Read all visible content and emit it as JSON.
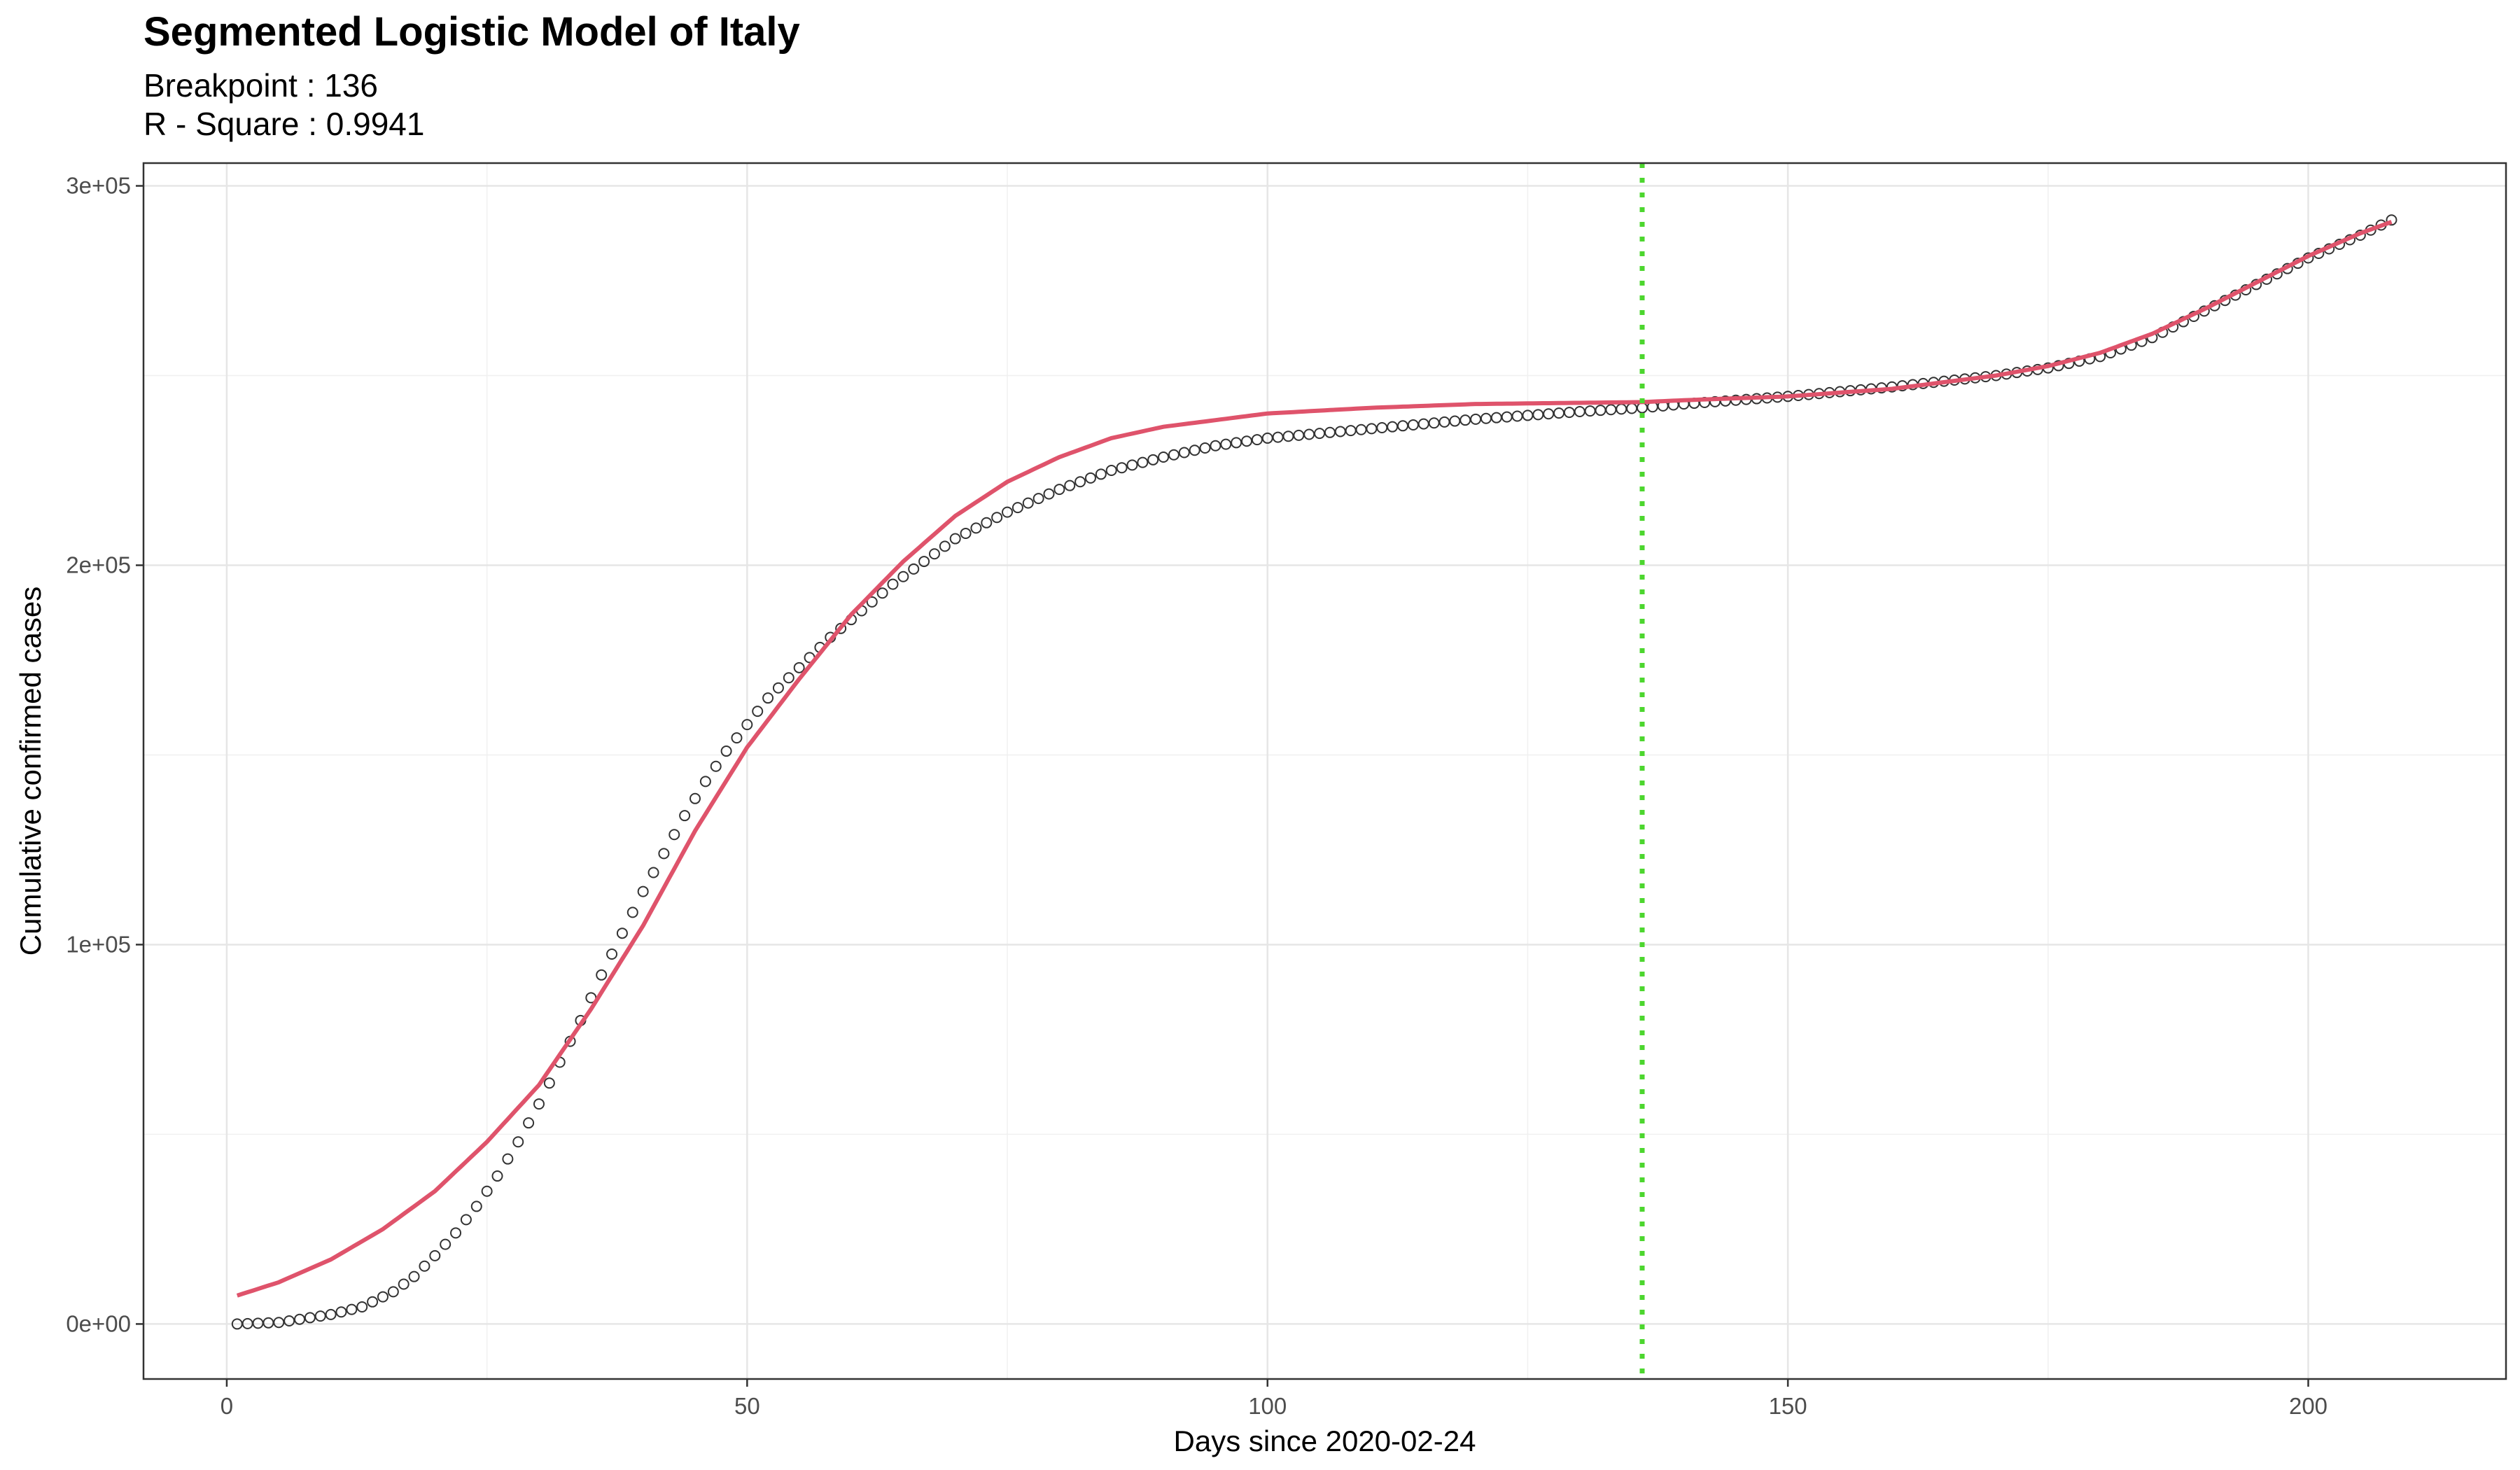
{
  "chart_data": {
    "type": "scatter",
    "title": "Segmented Logistic Model of Italy",
    "subtitle_lines": [
      "Breakpoint : 136",
      "R - Square : 0.9941"
    ],
    "xlabel": "Days since 2020-02-24",
    "ylabel": "Cumulative confirmed cases",
    "xlim": [
      -8,
      219
    ],
    "ylim": [
      -14500,
      306000
    ],
    "x_ticks": [
      0,
      50,
      100,
      150,
      200
    ],
    "x_tick_labels": [
      "0",
      "50",
      "100",
      "150",
      "200"
    ],
    "y_ticks": [
      0,
      100000,
      200000,
      300000
    ],
    "y_tick_labels": [
      "0e+00",
      "1e+05",
      "2e+05",
      "3e+05"
    ],
    "grid": true,
    "breakpoint": 136,
    "breakpoint_color": "#4cd62e",
    "fit_color": "#df536b",
    "point_color": "#333333",
    "observed_anchors": [
      [
        1,
        0
      ],
      [
        5,
        400
      ],
      [
        10,
        2500
      ],
      [
        13,
        4500
      ],
      [
        16,
        8500
      ],
      [
        18,
        12500
      ],
      [
        20,
        18000
      ],
      [
        22,
        24000
      ],
      [
        24,
        31000
      ],
      [
        26,
        39000
      ],
      [
        28,
        48000
      ],
      [
        30,
        58000
      ],
      [
        32,
        69000
      ],
      [
        34,
        80000
      ],
      [
        36,
        92000
      ],
      [
        38,
        103000
      ],
      [
        40,
        114000
      ],
      [
        42,
        124000
      ],
      [
        44,
        134000
      ],
      [
        46,
        143000
      ],
      [
        48,
        151000
      ],
      [
        50,
        158000
      ],
      [
        52,
        165000
      ],
      [
        55,
        173000
      ],
      [
        58,
        181000
      ],
      [
        61,
        188000
      ],
      [
        64,
        195000
      ],
      [
        67,
        201000
      ],
      [
        70,
        207000
      ],
      [
        75,
        214000
      ],
      [
        80,
        220000
      ],
      [
        85,
        225000
      ],
      [
        90,
        228500
      ],
      [
        95,
        231500
      ],
      [
        100,
        233500
      ],
      [
        110,
        236000
      ],
      [
        120,
        238500
      ],
      [
        130,
        240500
      ],
      [
        136,
        241500
      ],
      [
        140,
        242500
      ],
      [
        150,
        244500
      ],
      [
        160,
        247000
      ],
      [
        170,
        250000
      ],
      [
        175,
        252000
      ],
      [
        180,
        255000
      ],
      [
        185,
        260000
      ],
      [
        190,
        267000
      ],
      [
        195,
        274000
      ],
      [
        200,
        281000
      ],
      [
        205,
        287000
      ],
      [
        208,
        291000
      ]
    ],
    "fit_anchors": [
      [
        1,
        7500
      ],
      [
        5,
        11000
      ],
      [
        10,
        17000
      ],
      [
        15,
        25000
      ],
      [
        20,
        35000
      ],
      [
        25,
        48000
      ],
      [
        30,
        63000
      ],
      [
        35,
        83000
      ],
      [
        40,
        105000
      ],
      [
        45,
        130000
      ],
      [
        50,
        152000
      ],
      [
        55,
        170000
      ],
      [
        60,
        187000
      ],
      [
        65,
        201000
      ],
      [
        70,
        213000
      ],
      [
        75,
        222000
      ],
      [
        80,
        228500
      ],
      [
        85,
        233500
      ],
      [
        90,
        236500
      ],
      [
        100,
        240000
      ],
      [
        110,
        241500
      ],
      [
        120,
        242500
      ],
      [
        136,
        243000
      ],
      [
        140,
        243500
      ],
      [
        150,
        244500
      ],
      [
        160,
        246500
      ],
      [
        170,
        250000
      ],
      [
        175,
        252500
      ],
      [
        180,
        256000
      ],
      [
        185,
        261000
      ],
      [
        190,
        267500
      ],
      [
        195,
        274500
      ],
      [
        200,
        281500
      ],
      [
        205,
        287500
      ],
      [
        208,
        290500
      ]
    ]
  }
}
